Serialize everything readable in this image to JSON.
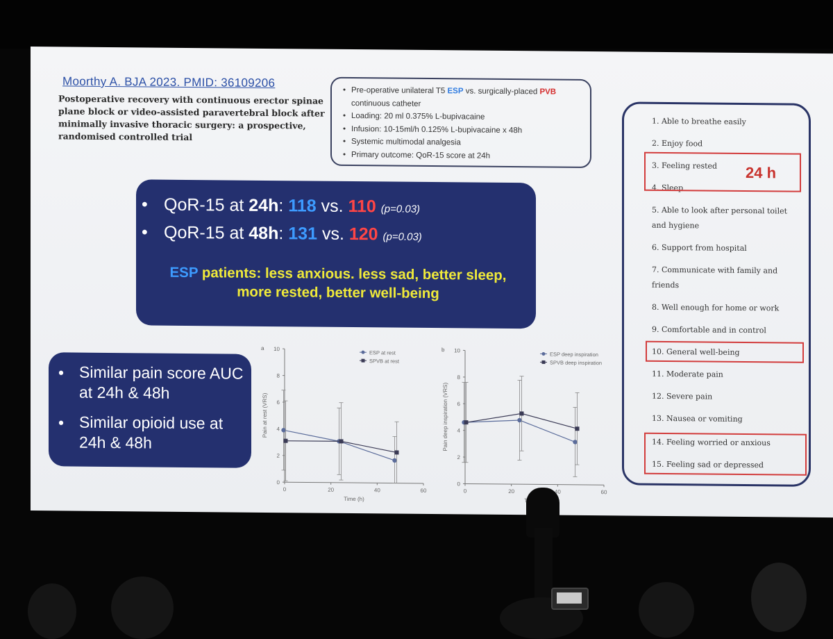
{
  "reference": {
    "link": "Moorthy A. BJA 2023. PMID: 36109206",
    "title": "Postoperative recovery with continuous erector spinae plane block or video-assisted paravertebral block after minimally invasive thoracic surgery: a prospective, randomised controlled trial"
  },
  "study_design": {
    "item1_pre": "Pre-operative unilateral T5 ",
    "item1_esp": "ESP",
    "item1_mid": " vs. surgically-placed ",
    "item1_pvb": "PVB",
    "item1_post": " continuous catheter",
    "loading": "Loading: 20 ml 0.375% L-bupivacaine",
    "infusion": "Infusion: 10-15ml/h 0.125% L-bupivacaine x 48h",
    "analgesia": "Systemic multimodal analgesia",
    "primary": "Primary outcome: QoR-15 score at 24h"
  },
  "results": {
    "r1_label": "QoR-15 at ",
    "r1_time": "24h",
    "r1_esp": "118",
    "r1_vs": " vs. ",
    "r1_pvb": "110",
    "r1_p": "(p=0.03)",
    "r2_label": "QoR-15 at ",
    "r2_time": "48h",
    "r2_esp": "131",
    "r2_vs": " vs. ",
    "r2_pvb": "120",
    "r2_p": "(p=0.03)",
    "summary_esp": "ESP",
    "summary_text": " patients: less anxious. less sad, better sleep, more rested, better well-being"
  },
  "pain_box": {
    "item1": "Similar pain score AUC at 24h & 48h",
    "item2": "Similar opioid use at 24h & 48h"
  },
  "chart_data": [
    {
      "type": "line",
      "panel": "a",
      "xlabel": "Time (h)",
      "ylabel": "Pain at rest (VRS)",
      "xlim": [
        0,
        60
      ],
      "ylim": [
        0,
        10
      ],
      "xticks": [
        0,
        20,
        40,
        60
      ],
      "yticks": [
        0,
        2,
        4,
        6,
        8,
        10
      ],
      "legend_position": "top-right",
      "series": [
        {
          "name": "ESP at rest",
          "x": [
            0,
            24,
            48
          ],
          "y": [
            3.9,
            3.1,
            1.7
          ],
          "err": [
            3.0,
            2.5,
            1.8
          ],
          "marker": "circle"
        },
        {
          "name": "SPVB at rest",
          "x": [
            0,
            24,
            48
          ],
          "y": [
            3.1,
            3.1,
            2.3
          ],
          "err": [
            3.0,
            2.9,
            2.3
          ],
          "marker": "square"
        }
      ],
      "colors": [
        "#5a6b9a",
        "#3a3a55"
      ]
    },
    {
      "type": "line",
      "panel": "b",
      "xlabel": "Time (h)",
      "ylabel": "Pain deep inspiration (VRS)",
      "xlim": [
        0,
        60
      ],
      "ylim": [
        0,
        10
      ],
      "xticks": [
        0,
        20,
        40,
        60
      ],
      "yticks": [
        0,
        2,
        4,
        6,
        8,
        10
      ],
      "legend_position": "top-right",
      "series": [
        {
          "name": "ESP deep inspiration",
          "x": [
            0,
            24,
            48
          ],
          "y": [
            4.6,
            4.8,
            3.2
          ],
          "err": [
            3.0,
            3.0,
            2.6
          ],
          "marker": "circle"
        },
        {
          "name": "SPVB deep inspiration",
          "x": [
            0,
            24,
            48
          ],
          "y": [
            4.6,
            5.3,
            4.2
          ],
          "err": [
            3.0,
            2.8,
            2.7
          ],
          "marker": "square"
        }
      ],
      "colors": [
        "#5a6b9a",
        "#3a3a55"
      ]
    }
  ],
  "qor15": {
    "items": [
      "1. Able to breathe easily",
      "2. Enjoy food",
      "3. Feeling rested",
      "4. Sleep",
      "5. Able to look after personal toilet and hygiene",
      "6. Support from hospital",
      "7. Communicate with family and friends",
      "8. Well enough for home or work",
      "9. Comfortable and in control",
      "10. General well-being",
      "11. Moderate pain",
      "12. Severe pain",
      "13. Nausea or vomiting",
      "14. Feeling worried or anxious",
      "15. Feeling sad or depressed"
    ],
    "highlight_label": "24 h",
    "highlight_color": "#d23b3b"
  },
  "colors": {
    "slide_bg": "#eef0f3",
    "box_navy": "#24306f",
    "esp_blue": "#3d9bff",
    "pvb_red": "#ff4545",
    "summary_yellow": "#f0ea3a"
  }
}
